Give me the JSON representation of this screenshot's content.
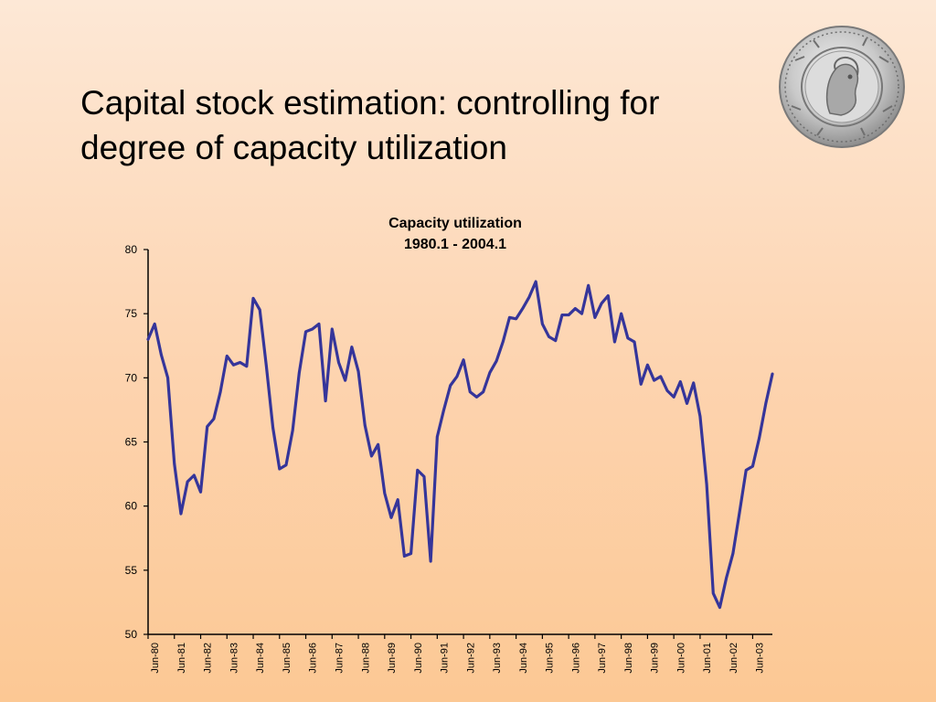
{
  "slide": {
    "title_line1": "Capital stock estimation: controlling for",
    "title_line2": "degree of capacity utilization",
    "logo_icon": "coin-seal-icon"
  },
  "chart_data": {
    "type": "line",
    "title": "Capacity utilization",
    "subtitle": "1980.1 - 2004.1",
    "xlabel": "",
    "ylabel": "",
    "ylim": [
      50,
      80
    ],
    "yticks": [
      50,
      55,
      60,
      65,
      70,
      75,
      80
    ],
    "xtick_labels": [
      "Jun-80",
      "Jun-81",
      "Jun-82",
      "Jun-83",
      "Jun-84",
      "Jun-85",
      "Jun-86",
      "Jun-87",
      "Jun-88",
      "Jun-89",
      "Jun-90",
      "Jun-91",
      "Jun-92",
      "Jun-93",
      "Jun-94",
      "Jun-95",
      "Jun-96",
      "Jun-97",
      "Jun-98",
      "Jun-99",
      "Jun-00",
      "Jun-01",
      "Jun-02",
      "Jun-03"
    ],
    "grid": false,
    "legend": "none",
    "line_color": "#35359a",
    "series": [
      {
        "values": [
          73.0,
          74.2,
          71.8,
          70.0,
          63.3,
          59.4,
          61.9,
          62.4,
          61.1,
          66.2,
          66.8,
          68.9,
          71.7,
          71.0,
          71.2,
          70.9,
          76.2,
          75.3,
          70.9,
          66.1,
          62.9,
          63.2,
          65.9,
          70.4,
          73.6,
          73.8,
          74.2,
          68.2,
          73.8,
          71.2,
          69.8,
          72.4,
          70.5,
          66.3,
          63.9,
          64.8,
          61.0,
          59.1,
          60.5,
          56.1,
          56.3,
          62.8,
          62.3,
          55.7,
          65.4,
          67.5,
          69.4,
          70.1,
          71.4,
          68.9,
          68.5,
          68.9,
          70.4,
          71.3,
          72.8,
          74.7,
          74.6,
          75.4,
          76.3,
          77.5,
          74.2,
          73.2,
          72.9,
          74.9,
          74.9,
          75.4,
          75.0,
          77.2,
          74.7,
          75.8,
          76.4,
          72.8,
          75.0,
          73.1,
          72.8,
          69.5,
          71.0,
          69.8,
          70.1,
          69.0,
          68.5,
          69.7,
          68.0,
          69.6,
          67.0,
          61.7,
          53.2,
          52.1,
          54.4,
          56.3,
          59.5,
          62.8,
          63.1,
          65.3,
          68.0,
          70.3
        ]
      }
    ]
  }
}
